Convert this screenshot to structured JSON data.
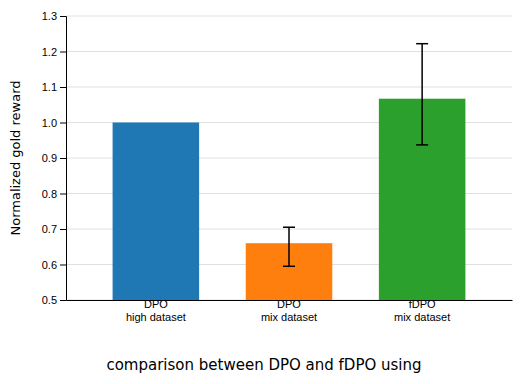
{
  "chart_data": {
    "type": "bar",
    "categories": [
      "DPO\nhigh dataset",
      "DPO\nmix dataset",
      "fDPO\nmix dataset"
    ],
    "values": [
      1.0,
      0.66,
      1.067
    ],
    "errors_low": [
      0.0,
      0.065,
      0.13
    ],
    "errors_high": [
      0.0,
      0.045,
      0.155
    ],
    "colors": [
      "#1f77b4",
      "#ff7f0e",
      "#2ca02c"
    ],
    "y_label": "Normalized gold reward",
    "ylim": [
      0.5,
      1.3
    ],
    "yticks": [
      0.5,
      0.6,
      0.7,
      0.8,
      0.9,
      {
        "value": 1.0,
        "label": "1.0"
      },
      1.1,
      1.2,
      1.3
    ],
    "grid": true,
    "annotations": [
      "comparison between DPO and fDPO using"
    ]
  }
}
